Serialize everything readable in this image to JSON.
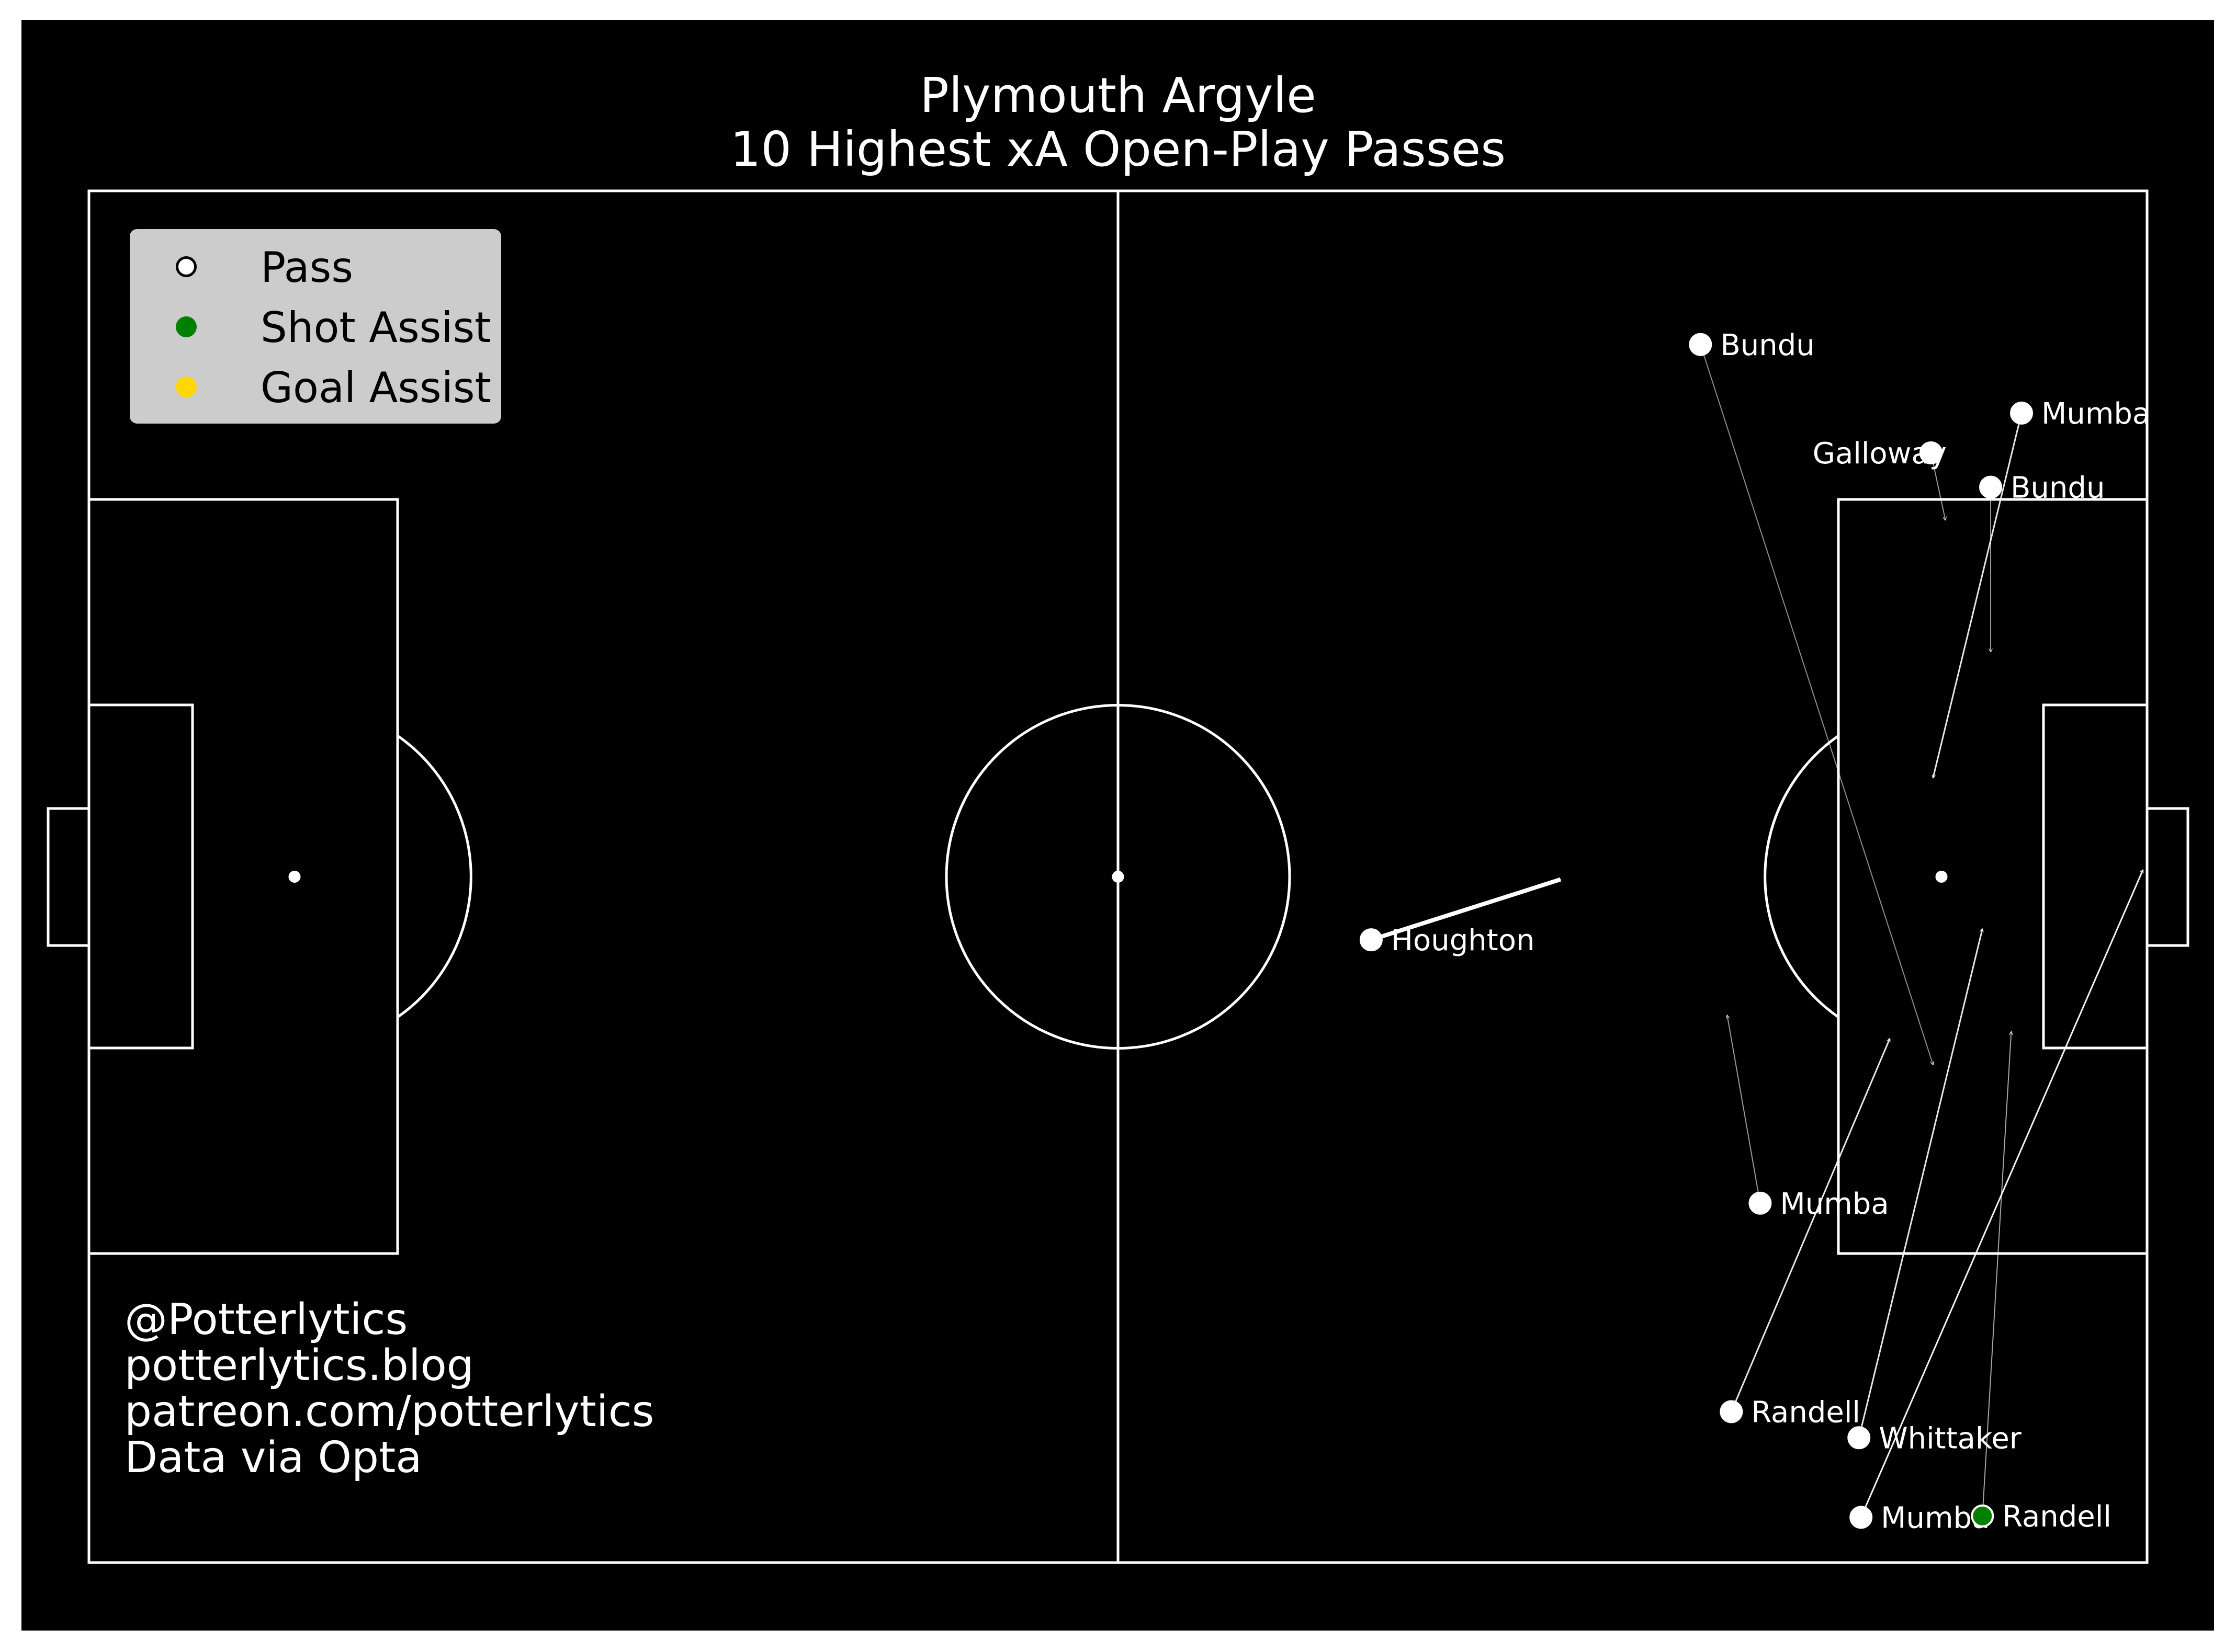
{
  "colors": {
    "background": "#000000",
    "frame": "#ffffff",
    "lines": "#ffffff",
    "pass": "#ffffff",
    "shot_assist": "#008000",
    "goal_assist": "#ffd700",
    "legend_bg": "#cccccc"
  },
  "title": {
    "line1": "Plymouth Argyle",
    "line2": "10 Highest xA Open-Play Passes"
  },
  "legend": [
    {
      "label": "Pass",
      "marker": "open-circle",
      "color": "#ffffff"
    },
    {
      "label": "Shot Assist",
      "marker": "filled-circle",
      "color": "#008000"
    },
    {
      "label": "Goal Assist",
      "marker": "filled-circle",
      "color": "#ffd700"
    }
  ],
  "credits": [
    "@Potterlytics",
    "potterlytics.blog",
    "patreon.com/potterlytics",
    "Data via Opta"
  ],
  "chart_data": {
    "type": "scatter",
    "description_units": "Opta pitch coordinates: x 0-100 toward attacking goal (right), y 0-100 from top touchline to bottom touchline",
    "xlim": [
      0,
      100
    ],
    "ylim": [
      0,
      100
    ],
    "passes": [
      {
        "player": "Bundu",
        "x": 78.3,
        "y": 11.2,
        "end_x": 89.6,
        "end_y": 63.7,
        "type": "Pass",
        "xa": null
      },
      {
        "player": "Mumba",
        "x": 93.9,
        "y": 16.2,
        "end_x": 89.6,
        "end_y": 42.8,
        "type": "Pass",
        "xa": null
      },
      {
        "player": "Galloway",
        "x": 89.5,
        "y": 19.1,
        "end_x": 90.2,
        "end_y": 24.0,
        "type": "Pass",
        "xa": null
      },
      {
        "player": "Bundu",
        "x": 92.4,
        "y": 21.6,
        "end_x": 92.4,
        "end_y": 33.6,
        "type": "Pass",
        "xa": null
      },
      {
        "player": "Houghton",
        "x": 62.3,
        "y": 54.6,
        "end_x": 71.5,
        "end_y": 50.2,
        "type": "Pass",
        "xa": null
      },
      {
        "player": "Mumba",
        "x": 81.2,
        "y": 73.8,
        "end_x": 79.6,
        "end_y": 60.1,
        "type": "Pass",
        "xa": null
      },
      {
        "player": "Randell",
        "x": 79.8,
        "y": 89.0,
        "end_x": 87.5,
        "end_y": 61.8,
        "type": "Pass",
        "xa": null
      },
      {
        "player": "Whittaker",
        "x": 86.0,
        "y": 90.9,
        "end_x": 92.0,
        "end_y": 53.8,
        "type": "Pass",
        "xa": null
      },
      {
        "player": "Mumba",
        "x": 86.1,
        "y": 96.7,
        "end_x": 99.8,
        "end_y": 49.5,
        "type": "Pass",
        "xa": null
      },
      {
        "player": "Randell",
        "x": 92.0,
        "y": 96.6,
        "end_x": 93.4,
        "end_y": 61.3,
        "type": "Shot Assist",
        "xa": null
      }
    ]
  }
}
